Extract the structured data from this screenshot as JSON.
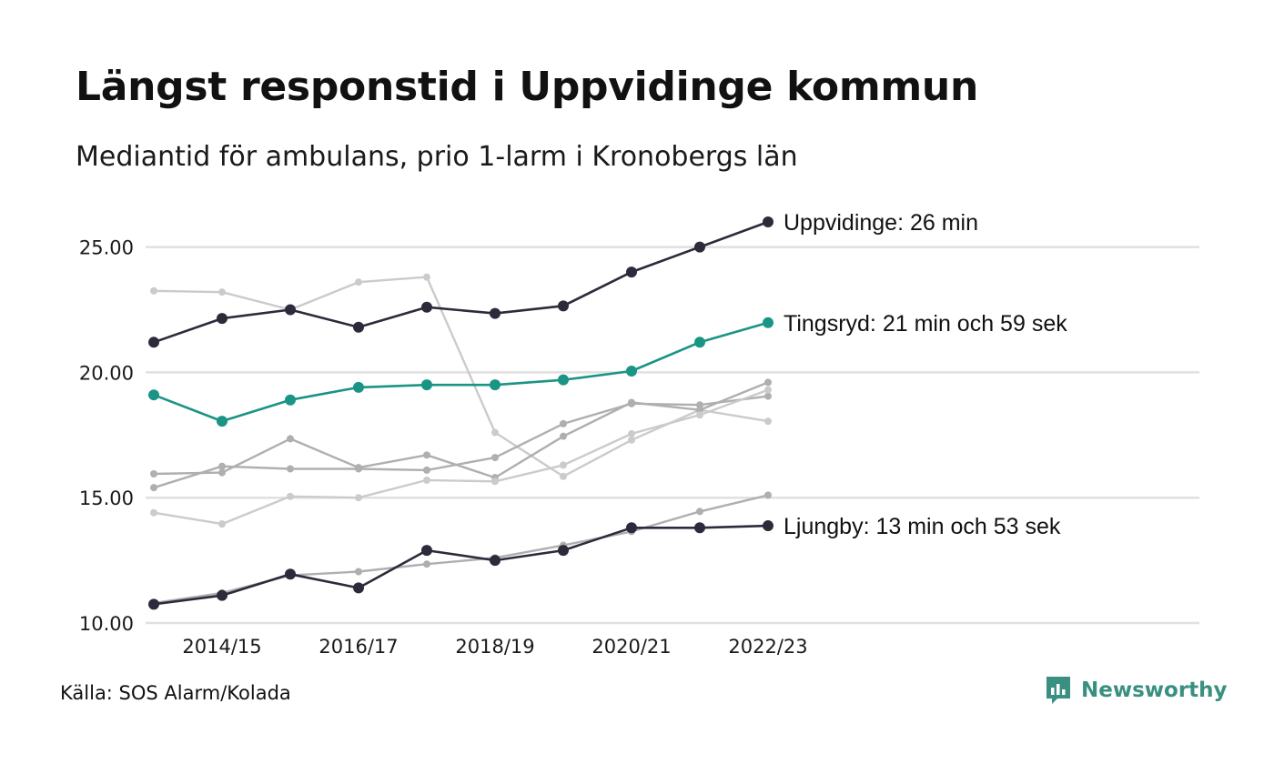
{
  "title": "Längst responstid i Uppvidinge kommun",
  "subtitle": "Mediantid för ambulans, prio 1-larm i Kronobergs län",
  "source": "Källa: SOS Alarm/Kolada",
  "brand": "Newsworthy",
  "colors": {
    "highlight_dark": "#2b2b3b",
    "highlight_teal": "#1a9485",
    "background_mid": "#afafaf",
    "background_light": "#cbcbcb",
    "gridline": "#e0e0e0",
    "brand": "#3a9080"
  },
  "chart_data": {
    "type": "line",
    "x": [
      "2013/14",
      "2014/15",
      "2015/16",
      "2016/17",
      "2017/18",
      "2018/19",
      "2019/20",
      "2020/21",
      "2021/22",
      "2022/23"
    ],
    "xticks": [
      "2014/15",
      "2016/17",
      "2018/19",
      "2020/21",
      "2022/23"
    ],
    "yticks": [
      "10.00",
      "15.00",
      "20.00",
      "25.00"
    ],
    "ylim": [
      10,
      26.2
    ],
    "grid": true,
    "legend": "none (direct labels at line ends)",
    "series": [
      {
        "name": "Uppvidinge",
        "label": "Uppvidinge: 26 min",
        "highlight": true,
        "color": "#2b2b3b",
        "values": [
          21.2,
          22.15,
          22.5,
          21.8,
          22.6,
          22.35,
          22.65,
          24.0,
          25.0,
          26.0
        ]
      },
      {
        "name": "Tingsryd",
        "label": "Tingsryd: 21 min och 59 sek",
        "highlight": true,
        "color": "#1a9485",
        "values": [
          19.1,
          18.05,
          18.9,
          19.4,
          19.5,
          19.5,
          19.7,
          20.05,
          21.2,
          21.98
        ]
      },
      {
        "name": "Ljungby",
        "label": "Ljungby: 13 min och 53 sek",
        "highlight": true,
        "color": "#2b2b3b",
        "values": [
          10.75,
          11.1,
          11.95,
          11.4,
          12.9,
          12.5,
          12.9,
          13.8,
          13.8,
          13.88
        ]
      },
      {
        "highlight": false,
        "color": "#cbcbcb",
        "values": [
          23.25,
          23.2,
          22.5,
          23.6,
          23.8,
          17.6,
          15.85,
          17.3,
          18.5,
          18.05
        ]
      },
      {
        "highlight": false,
        "color": "#afafaf",
        "values": [
          15.95,
          16.0,
          17.35,
          16.2,
          16.7,
          15.8,
          17.45,
          18.8,
          18.5,
          19.6
        ]
      },
      {
        "highlight": false,
        "color": "#afafaf",
        "values": [
          15.4,
          16.25,
          16.15,
          16.15,
          16.1,
          16.6,
          17.95,
          18.75,
          18.7,
          19.05
        ]
      },
      {
        "highlight": false,
        "color": "#cbcbcb",
        "values": [
          14.4,
          13.95,
          15.05,
          15.0,
          15.7,
          15.65,
          16.3,
          17.55,
          18.3,
          19.3
        ]
      },
      {
        "highlight": false,
        "color": "#afafaf",
        "values": [
          10.8,
          11.2,
          11.9,
          12.05,
          12.35,
          12.6,
          13.1,
          13.65,
          14.45,
          15.1
        ]
      }
    ]
  }
}
